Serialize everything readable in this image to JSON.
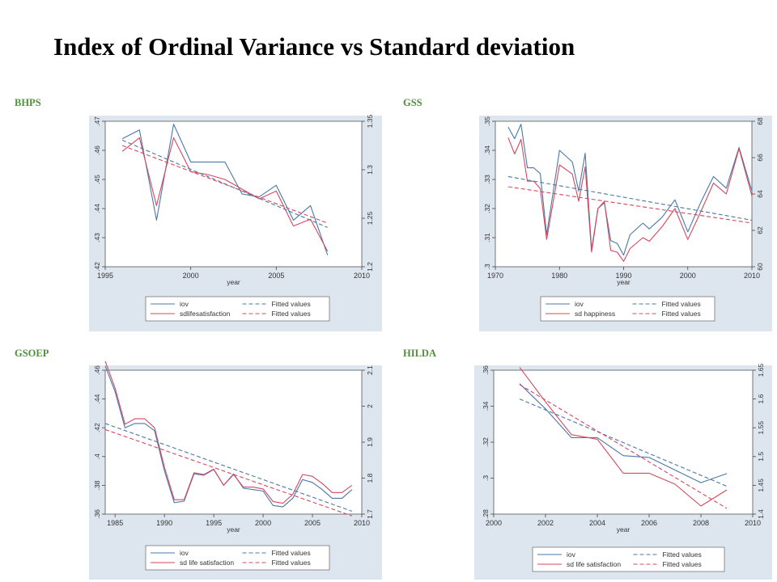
{
  "title": "Index of Ordinal Variance vs Standard deviation",
  "colors": {
    "iov": "#4a78a8",
    "sd": "#d5485e",
    "panel_bg": "#dde6ee",
    "plot_bg": "#ffffff",
    "label_green": "#4f8f3a"
  },
  "chart_data": [
    {
      "type": "line",
      "panel_label": "BHPS",
      "xlabel": "year",
      "xlim": [
        1995,
        2010
      ],
      "xticks": [
        "1995",
        "2000",
        "2005",
        "2010"
      ],
      "ylim_left": [
        0.42,
        0.47
      ],
      "yticks_left": [
        ".42",
        ".43",
        ".44",
        ".45",
        ".46",
        ".47"
      ],
      "ylim_right": [
        1.2,
        1.35
      ],
      "yticks_right": [
        "1.2",
        "1.25",
        "1.3",
        "1.35"
      ],
      "legend": [
        "iov",
        "sdlifesatisfaction",
        "Fitted values",
        "Fitted values"
      ],
      "series": [
        {
          "name": "iov",
          "axis": "left",
          "style": "solid",
          "x": [
            1996,
            1997,
            1998,
            1999,
            2000,
            2001,
            2002,
            2003,
            2004,
            2005,
            2006,
            2007,
            2008
          ],
          "y": [
            0.464,
            0.467,
            0.436,
            0.469,
            0.456,
            0.456,
            0.456,
            0.445,
            0.444,
            0.448,
            0.436,
            0.441,
            0.424
          ]
        },
        {
          "name": "sdlifesatisfaction",
          "axis": "right",
          "style": "solid",
          "x": [
            1996,
            1997,
            1998,
            1999,
            2000,
            2001,
            2002,
            2003,
            2004,
            2005,
            2006,
            2007,
            2008
          ],
          "y": [
            1.319,
            1.333,
            1.263,
            1.333,
            1.298,
            1.295,
            1.29,
            1.28,
            1.27,
            1.278,
            1.242,
            1.249,
            1.216
          ]
        },
        {
          "name": "Fitted values",
          "axis": "left",
          "style": "dashed",
          "of": "iov",
          "x": [
            1996,
            2008
          ],
          "y": [
            0.4635,
            0.4335
          ]
        },
        {
          "name": "Fitted values",
          "axis": "right",
          "style": "dashed",
          "of": "sdlifesatisfaction",
          "x": [
            1996,
            2008
          ],
          "y": [
            1.325,
            1.245
          ]
        }
      ]
    },
    {
      "type": "line",
      "panel_label": "GSS",
      "xlabel": "year",
      "xlim": [
        1970,
        2010
      ],
      "xticks": [
        "1970",
        "1980",
        "1990",
        "2000",
        "2010"
      ],
      "ylim_left": [
        0.3,
        0.35
      ],
      "yticks_left": [
        ".3",
        ".31",
        ".32",
        ".33",
        ".34",
        ".35"
      ],
      "ylim_right": [
        60,
        68
      ],
      "yticks_right": [
        "60",
        "62",
        "64",
        "66",
        "68"
      ],
      "legend": [
        "iov",
        "sd happiness",
        "Fitted values",
        "Fitted values"
      ],
      "series": [
        {
          "name": "iov",
          "axis": "left",
          "style": "solid",
          "x": [
            1972,
            1973,
            1974,
            1975,
            1976,
            1977,
            1978,
            1980,
            1982,
            1983,
            1984,
            1985,
            1986,
            1987,
            1988,
            1989,
            1990,
            1991,
            1993,
            1994,
            1996,
            1998,
            2000,
            2002,
            2004,
            2006,
            2008,
            2010
          ],
          "y": [
            0.348,
            0.344,
            0.349,
            0.334,
            0.334,
            0.332,
            0.311,
            0.34,
            0.336,
            0.326,
            0.339,
            0.306,
            0.32,
            0.322,
            0.309,
            0.308,
            0.304,
            0.311,
            0.315,
            0.313,
            0.317,
            0.323,
            0.312,
            0.322,
            0.331,
            0.327,
            0.341,
            0.326
          ]
        },
        {
          "name": "sd happiness",
          "axis": "right",
          "style": "solid",
          "x": [
            1972,
            1973,
            1974,
            1975,
            1976,
            1977,
            1978,
            1980,
            1982,
            1983,
            1984,
            1985,
            1986,
            1987,
            1988,
            1989,
            1990,
            1991,
            1993,
            1994,
            1996,
            1998,
            2000,
            2002,
            2004,
            2006,
            2008,
            2010
          ],
          "y": [
            67.1,
            66.2,
            67.0,
            64.7,
            64.7,
            64.3,
            61.5,
            65.6,
            65.1,
            63.6,
            65.5,
            60.8,
            63.2,
            63.6,
            60.9,
            60.8,
            60.3,
            61.0,
            61.6,
            61.4,
            62.2,
            63.2,
            61.5,
            63.0,
            64.6,
            64.0,
            66.5,
            63.9
          ]
        },
        {
          "name": "Fitted values",
          "axis": "left",
          "style": "dashed",
          "of": "iov",
          "x": [
            1972,
            2010
          ],
          "y": [
            0.331,
            0.316
          ]
        },
        {
          "name": "Fitted values",
          "axis": "right",
          "style": "dashed",
          "of": "sd happiness",
          "x": [
            1972,
            2010
          ],
          "y": [
            64.4,
            62.4
          ]
        }
      ]
    },
    {
      "type": "line",
      "panel_label": "GSOEP",
      "xlabel": "year",
      "xlim": [
        1984,
        2010
      ],
      "xticks": [
        "1985",
        "1990",
        "1995",
        "2000",
        "2005",
        "2010"
      ],
      "ylim_left": [
        0.36,
        0.46
      ],
      "yticks_left": [
        ".36",
        ".38",
        ".4",
        ".42",
        ".44",
        ".46"
      ],
      "ylim_right": [
        1.7,
        2.1
      ],
      "yticks_right": [
        "1.7",
        "1.8",
        "1.9",
        "2",
        "2.1"
      ],
      "legend": [
        "iov",
        "sd life satisfaction",
        "Fitted values",
        "Fitted values"
      ],
      "series": [
        {
          "name": "iov",
          "axis": "left",
          "style": "solid",
          "x": [
            1984,
            1985,
            1986,
            1987,
            1988,
            1989,
            1990,
            1991,
            1992,
            1993,
            1994,
            1995,
            1996,
            1997,
            1998,
            1999,
            2000,
            2001,
            2002,
            2003,
            2004,
            2005,
            2006,
            2007,
            2008,
            2009
          ],
          "y": [
            0.463,
            0.445,
            0.42,
            0.423,
            0.423,
            0.418,
            0.39,
            0.368,
            0.369,
            0.388,
            0.387,
            0.391,
            0.38,
            0.388,
            0.378,
            0.377,
            0.376,
            0.366,
            0.365,
            0.371,
            0.384,
            0.382,
            0.377,
            0.371,
            0.371,
            0.377
          ]
        },
        {
          "name": "sd life satisfaction",
          "axis": "right",
          "style": "solid",
          "x": [
            1984,
            1985,
            1986,
            1987,
            1988,
            1989,
            1990,
            1991,
            1992,
            1993,
            1994,
            1995,
            1996,
            1997,
            1998,
            1999,
            2000,
            2001,
            2002,
            2003,
            2004,
            2005,
            2006,
            2007,
            2008,
            2009
          ],
          "y": [
            2.125,
            2.05,
            1.95,
            1.965,
            1.965,
            1.94,
            1.83,
            1.74,
            1.74,
            1.815,
            1.81,
            1.825,
            1.78,
            1.81,
            1.775,
            1.775,
            1.77,
            1.735,
            1.73,
            1.755,
            1.81,
            1.805,
            1.785,
            1.76,
            1.76,
            1.78
          ]
        },
        {
          "name": "Fitted values",
          "axis": "left",
          "style": "dashed",
          "of": "iov",
          "x": [
            1984,
            2009
          ],
          "y": [
            0.423,
            0.362
          ]
        },
        {
          "name": "Fitted values",
          "axis": "right",
          "style": "dashed",
          "of": "sd life satisfaction",
          "x": [
            1984,
            2009
          ],
          "y": [
            1.935,
            1.695
          ]
        }
      ]
    },
    {
      "type": "line",
      "panel_label": "HILDA",
      "xlabel": "year",
      "xlim": [
        2000,
        2010
      ],
      "xticks": [
        "2000",
        "2002",
        "2004",
        "2006",
        "2008",
        "2010"
      ],
      "ylim_left": [
        0.28,
        0.36
      ],
      "yticks_left": [
        ".28",
        ".3",
        ".32",
        ".34",
        ".36"
      ],
      "ylim_right": [
        1.4,
        1.65
      ],
      "yticks_right": [
        "1.4",
        "1.45",
        "1.5",
        "1.55",
        "1.6",
        "1.65"
      ],
      "legend": [
        "iov",
        "sd life satisfaction",
        "Fitted values",
        "Fitted values"
      ],
      "series": [
        {
          "name": "iov",
          "axis": "left",
          "style": "solid",
          "x": [
            2001,
            2002,
            2003,
            2004,
            2005,
            2006,
            2007,
            2008,
            2009
          ],
          "y": [
            0.3525,
            0.3385,
            0.3225,
            0.3225,
            0.3125,
            0.3115,
            0.3045,
            0.2975,
            0.3025
          ]
        },
        {
          "name": "sd life satisfaction",
          "axis": "right",
          "style": "solid",
          "x": [
            2001,
            2002,
            2003,
            2004,
            2005,
            2006,
            2007,
            2008,
            2009
          ],
          "y": [
            1.655,
            1.595,
            1.538,
            1.53,
            1.471,
            1.471,
            1.452,
            1.414,
            1.442
          ]
        },
        {
          "name": "Fitted values",
          "axis": "left",
          "style": "dashed",
          "of": "iov",
          "x": [
            2001,
            2009
          ],
          "y": [
            0.344,
            0.2955
          ]
        },
        {
          "name": "Fitted values",
          "axis": "right",
          "style": "dashed",
          "of": "sd life satisfaction",
          "x": [
            2001,
            2009
          ],
          "y": [
            1.625,
            1.41
          ]
        }
      ]
    }
  ]
}
